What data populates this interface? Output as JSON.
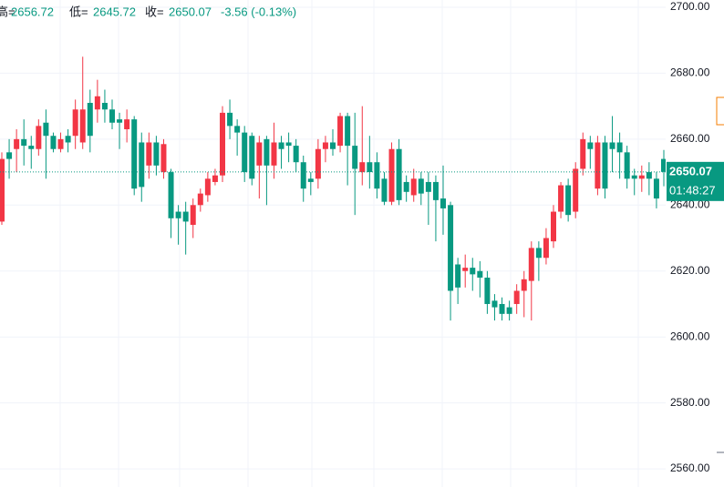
{
  "chart_data": {
    "type": "candlestick",
    "legend": [
      {
        "label": "高=",
        "value": "2656.72"
      },
      {
        "label": "低=",
        "value": "2645.72"
      },
      {
        "label": "收=",
        "value": "2650.07"
      }
    ],
    "change": "-3.56 (-0.13%)",
    "last_price": 2650.07,
    "countdown": "01:48:27",
    "up_color": "#f23645",
    "down_color": "#089981",
    "ylim": [
      2554.5,
      2702.2
    ],
    "yticks": [
      {
        "value": 2560,
        "label": "2560.00"
      },
      {
        "value": 2580,
        "label": "2580.00"
      },
      {
        "value": 2600,
        "label": "2600.00"
      },
      {
        "value": 2620,
        "label": "2620.00"
      },
      {
        "value": 2640,
        "label": "2640.00"
      },
      {
        "value": 2660,
        "label": "2660.00"
      },
      {
        "value": 2680,
        "label": "2680.00"
      },
      {
        "value": 2700,
        "label": "2700.00"
      }
    ],
    "grid": true,
    "open": [
      2635,
      2656,
      2657,
      2660,
      2658,
      2657,
      2665,
      2661,
      2657,
      2661,
      2661,
      2659,
      2671,
      2669,
      2671,
      2669,
      2666,
      2663,
      2666,
      2659,
      2652,
      2659,
      2650,
      2650,
      2638,
      2638,
      2634,
      2640,
      2643,
      2647,
      2649,
      2668,
      2664,
      2662,
      2661,
      2652,
      2660,
      2652,
      2659,
      2659,
      2658,
      2653,
      2648,
      2648,
      2657,
      2659,
      2658,
      2667,
      2658,
      2650,
      2653,
      2653,
      2648,
      2641,
      2657,
      2647,
      2643,
      2648,
      2647,
      2647,
      2642,
      2640,
      2622,
      2620,
      2621,
      2620,
      2618,
      2611,
      2610,
      2609,
      2610,
      2614,
      2617,
      2627,
      2624,
      2629,
      2638,
      2646,
      2638,
      2651,
      2659,
      2645,
      2659,
      2659,
      2659,
      2656,
      2649,
      2648,
      2650,
      2648,
      2654
    ],
    "high": [
      2656,
      2660,
      2663,
      2666,
      2661,
      2666,
      2669,
      2662,
      2662,
      2663,
      2672,
      2685,
      2675,
      2678,
      2675,
      2672,
      2668,
      2669,
      2667,
      2662,
      2662,
      2661,
      2660,
      2651,
      2640,
      2641,
      2642,
      2645,
      2650,
      2651,
      2670,
      2672,
      2666,
      2664,
      2662,
      2661,
      2661,
      2665,
      2661,
      2662,
      2660,
      2655,
      2650,
      2660,
      2661,
      2663,
      2668,
      2668,
      2668,
      2670,
      2661,
      2656,
      2650,
      2659,
      2660,
      2649,
      2651,
      2650,
      2650,
      2649,
      2652,
      2641,
      2624,
      2625,
      2624,
      2623,
      2620,
      2613,
      2612,
      2611,
      2616,
      2620,
      2629,
      2629,
      2633,
      2640,
      2647,
      2648,
      2653,
      2662,
      2661,
      2661,
      2661,
      2667,
      2662,
      2658,
      2651,
      2652,
      2653,
      2650,
      2656.72
    ],
    "low": [
      2634,
      2648,
      2650,
      2652,
      2651,
      2655,
      2648,
      2656,
      2656,
      2656,
      2657,
      2657,
      2656,
      2665,
      2665,
      2663,
      2657,
      2659,
      2643,
      2641,
      2648,
      2649,
      2648,
      2630,
      2628,
      2625,
      2630,
      2638,
      2641,
      2646,
      2647,
      2660,
      2655,
      2647,
      2646,
      2642,
      2640,
      2648,
      2651,
      2653,
      2650,
      2641,
      2643,
      2645,
      2653,
      2655,
      2656,
      2646,
      2637,
      2646,
      2645,
      2642,
      2640,
      2640,
      2640,
      2641,
      2641,
      2640,
      2634,
      2629,
      2631,
      2605,
      2610,
      2615,
      2614,
      2612,
      2607,
      2605,
      2605,
      2605,
      2607,
      2606,
      2605,
      2617,
      2622,
      2627,
      2636,
      2635,
      2636,
      2649,
      2651,
      2643,
      2642,
      2650,
      2648,
      2645,
      2643,
      2644,
      2643,
      2639,
      2645.72
    ],
    "close": [
      2654,
      2654,
      2660,
      2658,
      2657,
      2664,
      2661,
      2657,
      2660,
      2659,
      2669,
      2669,
      2661,
      2673,
      2669,
      2665,
      2665,
      2666,
      2645,
      2645.5,
      2659,
      2652,
      2658.5,
      2636,
      2636,
      2635,
      2640,
      2643.5,
      2648,
      2649,
      2668,
      2664,
      2662,
      2650,
      2648,
      2659,
      2652,
      2659,
      2657,
      2658,
      2653,
      2645,
      2647,
      2657,
      2659,
      2657,
      2667,
      2658,
      2651,
      2653,
      2650,
      2645,
      2641,
      2657,
      2641.5,
      2644,
      2648,
      2643.5,
      2644,
      2641.5,
      2639,
      2614,
      2615,
      2621,
      2619,
      2618,
      2610,
      2609,
      2607,
      2607,
      2614,
      2617.5,
      2627,
      2624,
      2630,
      2638,
      2646,
      2637,
      2651,
      2660,
      2657,
      2659,
      2645,
      2657,
      2656,
      2648,
      2648,
      2649,
      2648,
      2642,
      2650.07
    ]
  }
}
